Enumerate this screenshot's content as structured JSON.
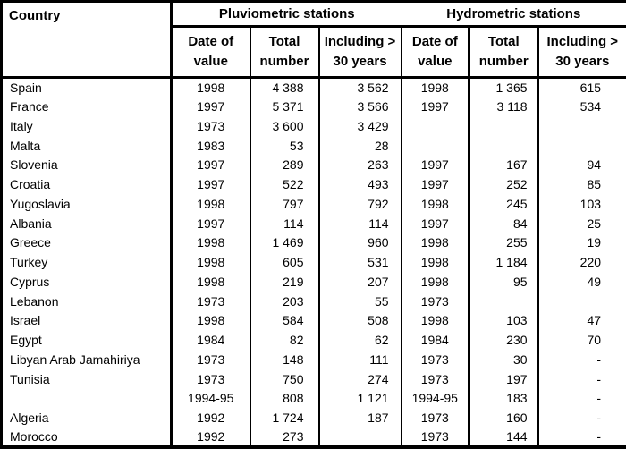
{
  "colors": {
    "border": "#000000",
    "background": "#ffffff",
    "text": "#000000"
  },
  "header": {
    "country": "Country",
    "group_pluviometric": "Pluviometric stations",
    "group_hydrometric": "Hydrometric stations",
    "sub": {
      "p_date": "Date of\nvalue",
      "p_total": "Total\nnumber",
      "p_incl": "Including >\n30 years",
      "h_date": "Date of\nvalue",
      "h_total": "Total\nnumber",
      "h_incl": "Including >\n30 years"
    }
  },
  "rows": [
    {
      "country": "Spain",
      "p_date": "1998",
      "p_total": "4 388",
      "p_incl": "3 562",
      "h_date": "1998",
      "h_total": "1 365",
      "h_incl": "615"
    },
    {
      "country": "France",
      "p_date": "1997",
      "p_total": "5 371",
      "p_incl": "3 566",
      "h_date": "1997",
      "h_total": "3 118",
      "h_incl": "534"
    },
    {
      "country": "Italy",
      "p_date": "1973",
      "p_total": "3 600",
      "p_incl": "3 429",
      "h_date": "",
      "h_total": "",
      "h_incl": ""
    },
    {
      "country": "Malta",
      "p_date": "1983",
      "p_total": "53",
      "p_incl": "28",
      "h_date": "",
      "h_total": "",
      "h_incl": ""
    },
    {
      "country": "Slovenia",
      "p_date": "1997",
      "p_total": "289",
      "p_incl": "263",
      "h_date": "1997",
      "h_total": "167",
      "h_incl": "94"
    },
    {
      "country": "Croatia",
      "p_date": "1997",
      "p_total": "522",
      "p_incl": "493",
      "h_date": "1997",
      "h_total": "252",
      "h_incl": "85"
    },
    {
      "country": "Yugoslavia",
      "p_date": "1998",
      "p_total": "797",
      "p_incl": "792",
      "h_date": "1998",
      "h_total": "245",
      "h_incl": "103"
    },
    {
      "country": "Albania",
      "p_date": "1997",
      "p_total": "114",
      "p_incl": "114",
      "h_date": "1997",
      "h_total": "84",
      "h_incl": "25"
    },
    {
      "country": "Greece",
      "p_date": "1998",
      "p_total": "1 469",
      "p_incl": "960",
      "h_date": "1998",
      "h_total": "255",
      "h_incl": "19"
    },
    {
      "country": "Turkey",
      "p_date": "1998",
      "p_total": "605",
      "p_incl": "531",
      "h_date": "1998",
      "h_total": "1 184",
      "h_incl": "220"
    },
    {
      "country": "Cyprus",
      "p_date": "1998",
      "p_total": "219",
      "p_incl": "207",
      "h_date": "1998",
      "h_total": "95",
      "h_incl": "49"
    },
    {
      "country": "Lebanon",
      "p_date": "1973",
      "p_total": "203",
      "p_incl": "55",
      "h_date": "1973",
      "h_total": "",
      "h_incl": ""
    },
    {
      "country": "Israel",
      "p_date": "1998",
      "p_total": "584",
      "p_incl": "508",
      "h_date": "1998",
      "h_total": "103",
      "h_incl": "47"
    },
    {
      "country": "Egypt",
      "p_date": "1984",
      "p_total": "82",
      "p_incl": "62",
      "h_date": "1984",
      "h_total": "230",
      "h_incl": "70"
    },
    {
      "country": "Libyan Arab Jamahiriya",
      "p_date": "1973",
      "p_total": "148",
      "p_incl": "111",
      "h_date": "1973",
      "h_total": "30",
      "h_incl": "-"
    },
    {
      "country": "Tunisia",
      "p_date": "1973",
      "p_total": "750",
      "p_incl": "274",
      "h_date": "1973",
      "h_total": "197",
      "h_incl": "-"
    },
    {
      "country": "",
      "p_date": "1994-95",
      "p_total": "808",
      "p_incl": "1 121",
      "h_date": "1994-95",
      "h_total": "183",
      "h_incl": "-"
    },
    {
      "country": "Algeria",
      "p_date": "1992",
      "p_total": "1 724",
      "p_incl": "187",
      "h_date": "1973",
      "h_total": "160",
      "h_incl": "-"
    },
    {
      "country": "Morocco",
      "p_date": "1992",
      "p_total": "273",
      "p_incl": "",
      "h_date": "1973",
      "h_total": "144",
      "h_incl": "-"
    }
  ]
}
